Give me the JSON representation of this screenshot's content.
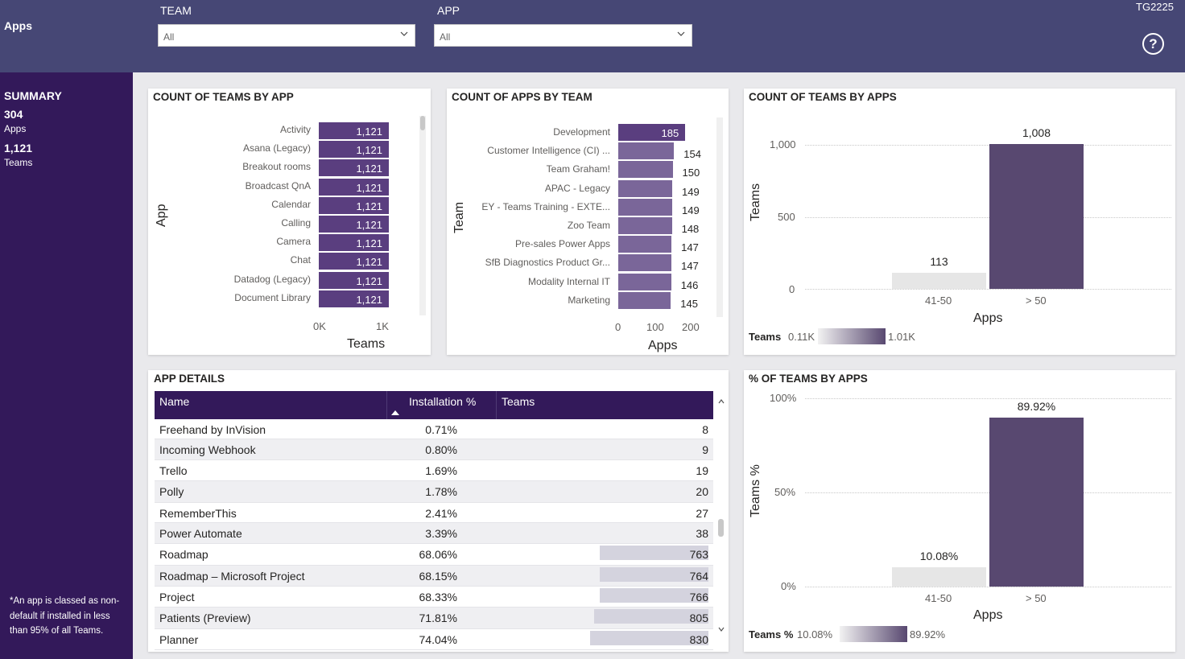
{
  "header": {
    "title": "Apps",
    "team_label": "TEAM",
    "team_value": "All",
    "app_label": "APP",
    "app_value": "All",
    "report_id": "TG2225",
    "help_icon": "question-circle-icon"
  },
  "sidebar": {
    "summary_title": "SUMMARY",
    "apps_count": "304",
    "apps_label": "Apps",
    "teams_count": "1,121",
    "teams_label": "Teams",
    "footnote": "*An app is classed as non-default if installed in less than 95% of all Teams."
  },
  "teams_by_app": {
    "title": "COUNT OF TEAMS BY APP",
    "y_title": "App",
    "x_title": "Teams",
    "ticks": [
      "0K",
      "1K"
    ],
    "chart_data": {
      "type": "bar",
      "categories": [
        "Activity",
        "Asana (Legacy)",
        "Breakout rooms",
        "Broadcast QnA",
        "Calendar",
        "Calling",
        "Camera",
        "Chat",
        "Datadog (Legacy)",
        "Document Library"
      ],
      "values": [
        1121,
        1121,
        1121,
        1121,
        1121,
        1121,
        1121,
        1121,
        1121,
        1121
      ],
      "labels": [
        "1,121",
        "1,121",
        "1,121",
        "1,121",
        "1,121",
        "1,121",
        "1,121",
        "1,121",
        "1,121",
        "1,121"
      ],
      "xlim": [
        0,
        1121
      ],
      "color": "#5a3e7f"
    }
  },
  "apps_by_team": {
    "title": "COUNT OF APPS BY TEAM",
    "y_title": "Team",
    "x_title": "Apps",
    "ticks": [
      "0",
      "100",
      "200"
    ],
    "chart_data": {
      "type": "bar",
      "categories": [
        "Development",
        "Customer Intelligence (CI) ...",
        "Team Graham!",
        "APAC - Legacy",
        "EY - Teams Training - EXTE...",
        "Zoo Team",
        "Pre-sales Power Apps",
        "SfB Diagnostics Product Gr...",
        "Modality Internal IT",
        "Marketing"
      ],
      "values": [
        185,
        154,
        150,
        149,
        149,
        148,
        147,
        147,
        146,
        145
      ],
      "xlim": [
        0,
        200
      ],
      "color": "#7a6699",
      "highlight_color": "#5a3e7f"
    }
  },
  "teams_by_apps": {
    "title": "COUNT OF TEAMS BY APPS",
    "y_title": "Teams",
    "x_title": "Apps",
    "y_ticks": [
      "1,000",
      "500",
      "0"
    ],
    "legend_title": "Teams",
    "legend_min": "0.11K",
    "legend_max": "1.01K",
    "chart_data": {
      "type": "bar",
      "categories": [
        "41-50",
        "> 50"
      ],
      "values": [
        113,
        1008
      ],
      "labels": [
        "113",
        "1,008"
      ],
      "ylim": [
        0,
        1000
      ],
      "colors": [
        "#e6e6e6",
        "#584870"
      ]
    }
  },
  "pct_teams_by_apps": {
    "title": "% OF TEAMS BY APPS",
    "y_title": "Teams %",
    "x_title": "Apps",
    "y_ticks": [
      "100%",
      "50%",
      "0%"
    ],
    "legend_title": "Teams %",
    "legend_min": "10.08%",
    "legend_max": "89.92%",
    "chart_data": {
      "type": "bar",
      "categories": [
        "41-50",
        "> 50"
      ],
      "values": [
        10.08,
        89.92
      ],
      "labels": [
        "10.08%",
        "89.92%"
      ],
      "ylim": [
        0,
        100
      ],
      "colors": [
        "#e6e6e6",
        "#584870"
      ]
    }
  },
  "app_details": {
    "title": "APP DETAILS",
    "columns": [
      "Name",
      "Installation %",
      "Teams"
    ],
    "max_teams": 1121,
    "rows": [
      {
        "name": "Freehand by InVision",
        "pct": "0.71%",
        "teams": "8",
        "teams_value": 8
      },
      {
        "name": "Incoming Webhook",
        "pct": "0.80%",
        "teams": "9",
        "teams_value": 9
      },
      {
        "name": "Trello",
        "pct": "1.69%",
        "teams": "19",
        "teams_value": 19
      },
      {
        "name": "Polly",
        "pct": "1.78%",
        "teams": "20",
        "teams_value": 20
      },
      {
        "name": "RememberThis",
        "pct": "2.41%",
        "teams": "27",
        "teams_value": 27
      },
      {
        "name": "Power Automate",
        "pct": "3.39%",
        "teams": "38",
        "teams_value": 38
      },
      {
        "name": "Roadmap",
        "pct": "68.06%",
        "teams": "763",
        "teams_value": 763
      },
      {
        "name": "Roadmap – Microsoft Project",
        "pct": "68.15%",
        "teams": "764",
        "teams_value": 764
      },
      {
        "name": "Project",
        "pct": "68.33%",
        "teams": "766",
        "teams_value": 766
      },
      {
        "name": "Patients (Preview)",
        "pct": "71.81%",
        "teams": "805",
        "teams_value": 805
      },
      {
        "name": "Planner",
        "pct": "74.04%",
        "teams": "830",
        "teams_value": 830
      }
    ]
  }
}
